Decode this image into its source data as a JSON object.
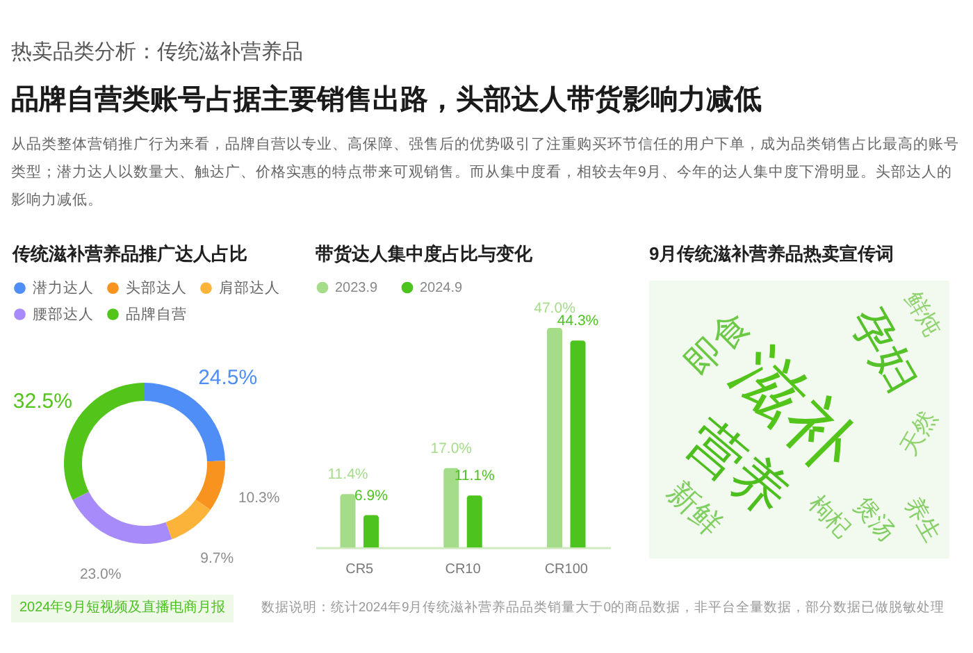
{
  "chart_data": [
    {
      "type": "other",
      "title": "热卖品类分析：传统滋补营养品",
      "subtitle": "品牌自营类账号占据主要销售出路，头部达人带货影响力减低",
      "annotations": [
        "从品类整体营销推广行为来看，品牌自营以专业、高保障、强售后的优势吸引了注重购买环节信任的用户下单，成为品类销售占比最高的账号类型；潜力达人以数量大、触达广、价格实惠的特点带来可观销售。而从集中度看，相较去年9月、今年的达人集中度下滑明显。头部达人的影响力减低。"
      ]
    },
    {
      "type": "donut",
      "title": "传统滋补营养品推广达人占比",
      "categories": [
        "潜力达人",
        "头部达人",
        "肩部达人",
        "腰部达人",
        "品牌自营"
      ],
      "values": [
        24.5,
        10.3,
        9.7,
        23.0,
        32.5
      ],
      "colors": [
        "#4f8ef7",
        "#f7931e",
        "#fbb33a",
        "#a78bfa",
        "#52c41a"
      ],
      "value_labels": [
        "24.5%",
        "10.3%",
        "9.7%",
        "23.0%",
        "32.5%"
      ],
      "legend": "top left"
    },
    {
      "type": "bar",
      "title": "带货达人集中度占比与变化",
      "categories": [
        "CR5",
        "CR10",
        "CR100"
      ],
      "series": [
        {
          "name": "2023.9",
          "color": "#a5dc8a",
          "values": [
            11.4,
            17.0,
            47.0
          ],
          "value_labels": [
            "11.4%",
            "17.0%",
            "47.0%"
          ]
        },
        {
          "name": "2024.9",
          "color": "#4cc31e",
          "values": [
            6.9,
            11.1,
            44.3
          ],
          "value_labels": [
            "6.9%",
            "11.1%",
            "44.3%"
          ]
        }
      ],
      "legend": "top left"
    },
    {
      "type": "other",
      "title": "9月传统滋补营养品热卖宣传词",
      "annotations": [
        "滋补",
        "营养",
        "孕妇",
        "即食",
        "新鲜",
        "鲜炖",
        "天然",
        "枸杞",
        "煲汤",
        "养生"
      ],
      "colors": [
        "#52c41a",
        "#4cbf1f",
        "#56c22a",
        "#6cc946",
        "#7fcf60",
        "#8fd36e",
        "#8fd36e",
        "#86cf66",
        "#7fcf60",
        "#86cf66"
      ]
    },
    {
      "type": "other",
      "annotations": [
        "2024年9月短视频及直播电商月报",
        "数据说明：统计2024年9月传统滋补营养品品类销量大于0的商品数据，非平台全量数据，部分数据已做脱敏处理"
      ]
    }
  ]
}
